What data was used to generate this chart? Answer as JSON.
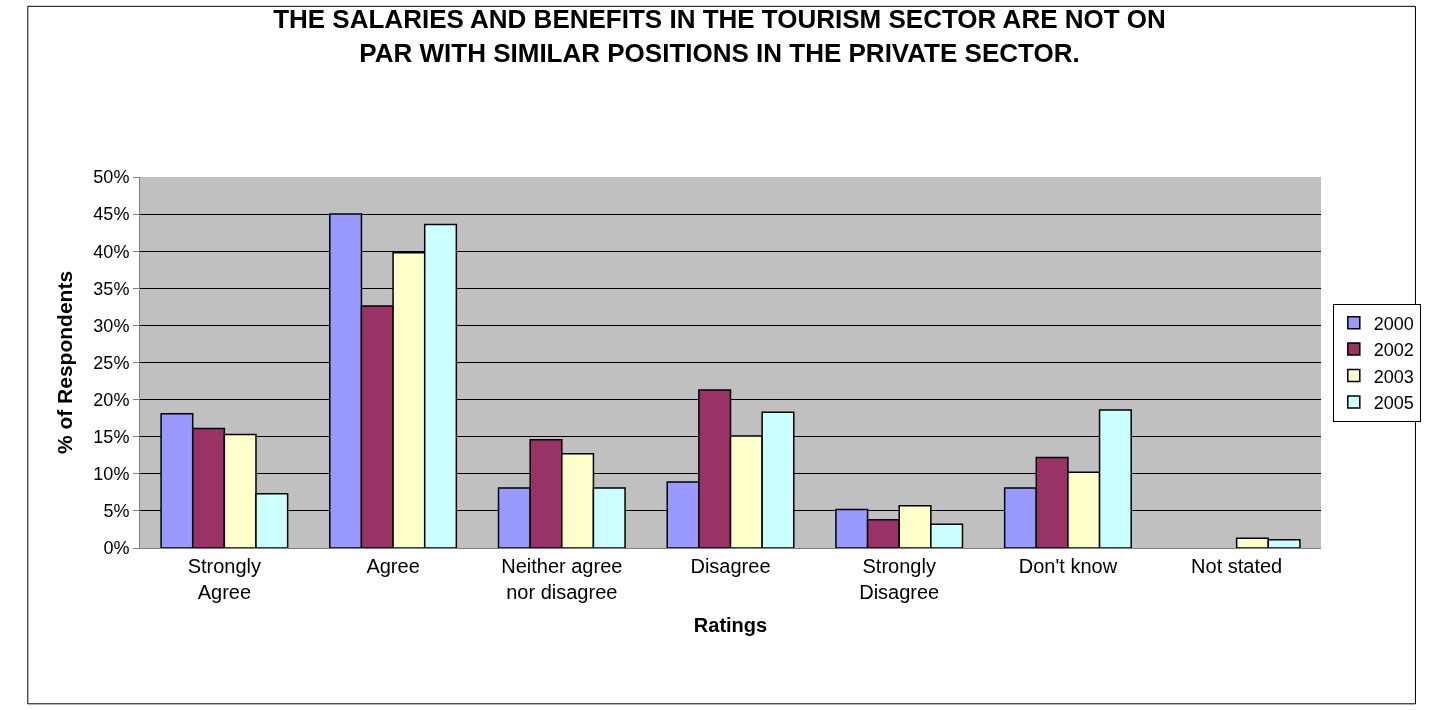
{
  "chart_data": {
    "type": "bar",
    "title": "THE SALARIES AND BENEFITS IN THE TOURISM SECTOR ARE NOT ON\nPAR WITH SIMILAR POSITIONS IN THE PRIVATE SECTOR.",
    "xlabel": "Ratings",
    "ylabel": "% of Respondents",
    "categories": [
      "Strongly\nAgree",
      "Agree",
      "Neither agree\nnor disagree",
      "Disagree",
      "Strongly\nDisagree",
      "Don't know",
      "Not stated"
    ],
    "series": [
      {
        "name": "2000",
        "color": "#9999ff",
        "values": [
          18.1,
          45,
          8.1,
          8.9,
          5.2,
          8.1,
          null
        ]
      },
      {
        "name": "2002",
        "color": "#993366",
        "values": [
          16.1,
          32.6,
          14.6,
          21.3,
          3.8,
          12.2,
          null
        ]
      },
      {
        "name": "2003",
        "color": "#ffffcc",
        "values": [
          15.3,
          39.8,
          12.7,
          15.1,
          5.7,
          10.2,
          1.3
        ]
      },
      {
        "name": "2005",
        "color": "#ccffff",
        "values": [
          7.3,
          43.6,
          8.1,
          18.3,
          3.2,
          18.6,
          1.1
        ]
      }
    ],
    "ylim": [
      0,
      50
    ],
    "yticks": [
      {
        "value": 0,
        "label": "0%"
      },
      {
        "value": 5,
        "label": "5%"
      },
      {
        "value": 10,
        "label": "10%"
      },
      {
        "value": 15,
        "label": "15%"
      },
      {
        "value": 20,
        "label": "20%"
      },
      {
        "value": 25,
        "label": "25%"
      },
      {
        "value": 30,
        "label": "30%"
      },
      {
        "value": 35,
        "label": "35%"
      },
      {
        "value": 40,
        "label": "40%"
      },
      {
        "value": 45,
        "label": "45%"
      },
      {
        "value": 50,
        "label": "50%"
      }
    ],
    "grid": "y",
    "legend": "right"
  }
}
